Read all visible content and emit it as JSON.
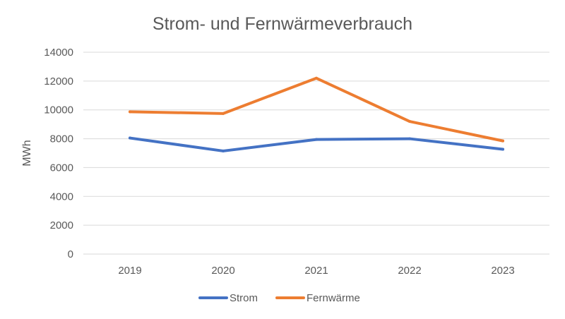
{
  "chart_data": {
    "type": "line",
    "title": "Strom- und Fernwärmeverbrauch",
    "xlabel": "",
    "ylabel": "MWh",
    "categories": [
      "2019",
      "2020",
      "2021",
      "2022",
      "2023"
    ],
    "ylim": [
      0,
      14000
    ],
    "yticks": [
      0,
      2000,
      4000,
      6000,
      8000,
      10000,
      12000,
      14000
    ],
    "grid": true,
    "legend_position": "bottom",
    "series": [
      {
        "name": "Strom",
        "color": "#4472c4",
        "values": [
          8050,
          7150,
          7950,
          8000,
          7270
        ]
      },
      {
        "name": "Fernwärme",
        "color": "#ed7d31",
        "values": [
          9870,
          9750,
          12200,
          9200,
          7850
        ]
      }
    ]
  }
}
